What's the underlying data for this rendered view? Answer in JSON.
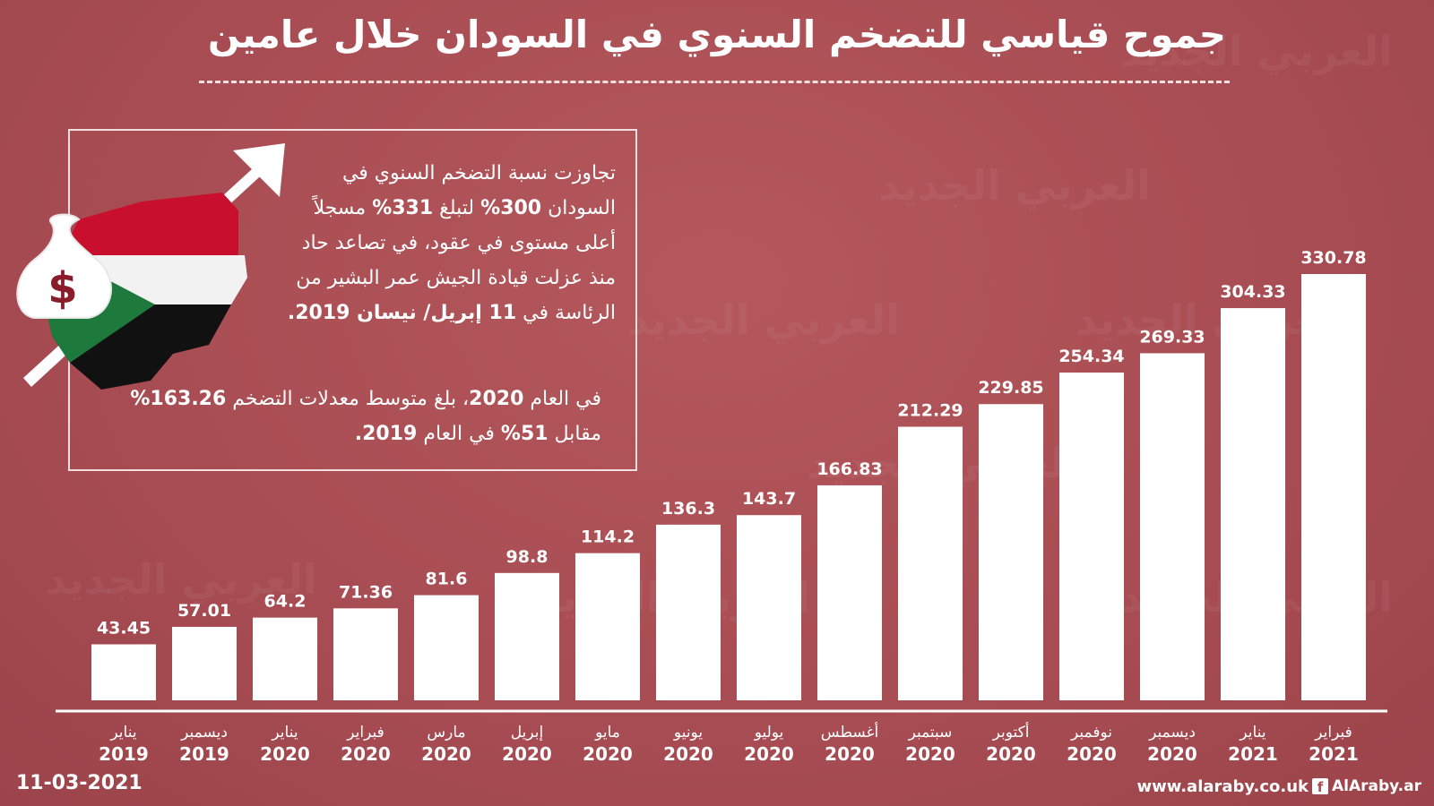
{
  "title": "جموح قياسي للتضخم السنوي في السودان خلال عامين",
  "info": {
    "p1_a": "تجاوزت نسبة التضخم السنوي في السودان ",
    "p1_b": "300%",
    "p1_c": " لتبلغ ",
    "p1_d": "331%",
    "p1_e": " مسجلاً أعلى مستوى في عقود، في تصاعد حاد منذ عزلت قيادة الجيش عمر البشير من الرئاسة في ",
    "p1_f": "11 إبريل/ نيسان 2019.",
    "p2_a": "في العام ",
    "p2_b": "2020",
    "p2_c": "، بلغ متوسط معدلات التضخم ",
    "p2_d": "163.26%",
    "p2_e": " مقابل ",
    "p2_f": "51%",
    "p2_g": " في العام ",
    "p2_h": "2019."
  },
  "illustration": {
    "currency_symbol": "$"
  },
  "footer": {
    "date": "11-03-2021",
    "site": "www.alaraby.co.uk",
    "social": "AlAraby.ar",
    "fb_glyph": "f"
  },
  "watermark": "العربي الجديد",
  "colors": {
    "background": "#a84d53",
    "bar": "#ffffff",
    "flag_red": "#c8102e",
    "flag_white": "#f2f2f2",
    "flag_black": "#111111",
    "flag_green": "#1e7a3c"
  },
  "chart_data": {
    "type": "bar",
    "title": "جموح قياسي للتضخم السنوي في السودان خلال عامين",
    "categories": [
      {
        "month": "يناير",
        "year": "2019"
      },
      {
        "month": "ديسمبر",
        "year": "2019"
      },
      {
        "month": "يناير",
        "year": "2020"
      },
      {
        "month": "فبراير",
        "year": "2020"
      },
      {
        "month": "مارس",
        "year": "2020"
      },
      {
        "month": "إبريل",
        "year": "2020"
      },
      {
        "month": "مايو",
        "year": "2020"
      },
      {
        "month": "يونيو",
        "year": "2020"
      },
      {
        "month": "يوليو",
        "year": "2020"
      },
      {
        "month": "أغسطس",
        "year": "2020"
      },
      {
        "month": "سبتمبر",
        "year": "2020"
      },
      {
        "month": "أكتوبر",
        "year": "2020"
      },
      {
        "month": "نوفمبر",
        "year": "2020"
      },
      {
        "month": "ديسمبر",
        "year": "2020"
      },
      {
        "month": "يناير",
        "year": "2021"
      },
      {
        "month": "فبراير",
        "year": "2021"
      }
    ],
    "values": [
      43.45,
      57.01,
      64.2,
      71.36,
      81.6,
      98.8,
      114.2,
      136.3,
      143.7,
      166.83,
      212.29,
      229.85,
      254.34,
      269.33,
      304.33,
      330.78
    ],
    "value_labels": [
      "43.45",
      "57.01",
      "64.2",
      "71.36",
      "81.6",
      "98.8",
      "114.2",
      "136.3",
      "143.7",
      "166.83",
      "212.29",
      "229.85",
      "254.34",
      "269.33",
      "304.33",
      "330.78"
    ],
    "ylim": [
      0,
      330.78
    ],
    "grid": false,
    "legend": "none"
  }
}
